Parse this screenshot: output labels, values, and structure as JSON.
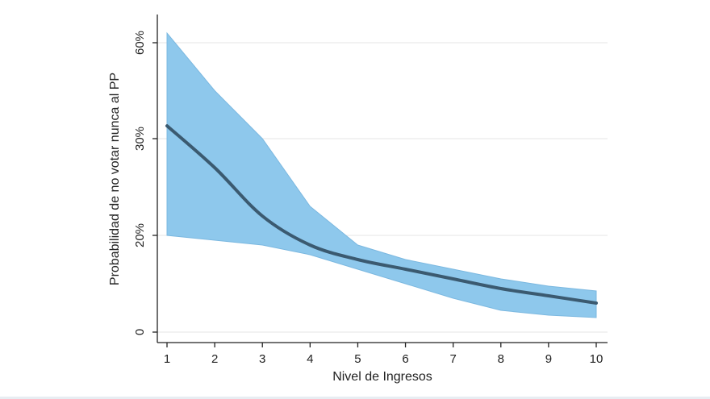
{
  "chart_data": {
    "type": "line",
    "xlabel": "Nivel de Ingresos",
    "ylabel": "Probabilidad de no votar nunca al PP",
    "x": [
      1,
      2,
      3,
      4,
      5,
      6,
      7,
      8,
      9,
      10
    ],
    "x_ticks": [
      "1",
      "2",
      "3",
      "4",
      "5",
      "6",
      "7",
      "8",
      "9",
      "10"
    ],
    "xlim": [
      0.95,
      10.05
    ],
    "y_ticks": [
      {
        "pos": 0,
        "label": "0"
      },
      {
        "pos": 1,
        "label": "20%"
      },
      {
        "pos": 2,
        "label": "30%"
      },
      {
        "pos": 3,
        "label": "60%"
      }
    ],
    "y_axis_note": "non-linear axis with ticks 0, 20%, 30%, 60% at equal spacing",
    "series": [
      {
        "line": [
          0.34,
          0.27,
          0.22,
          0.18,
          0.15,
          0.13,
          0.11,
          0.09,
          0.075,
          0.06
        ],
        "upper": [
          0.63,
          0.45,
          0.3,
          0.23,
          0.18,
          0.15,
          0.13,
          0.11,
          0.095,
          0.085
        ],
        "lower": [
          0.2,
          0.19,
          0.18,
          0.16,
          0.13,
          0.1,
          0.07,
          0.045,
          0.035,
          0.03
        ]
      }
    ],
    "colors": {
      "line": "#3b5a70",
      "band": "#8ec8ec",
      "grid": "#e6e6e6"
    },
    "grid": true
  }
}
